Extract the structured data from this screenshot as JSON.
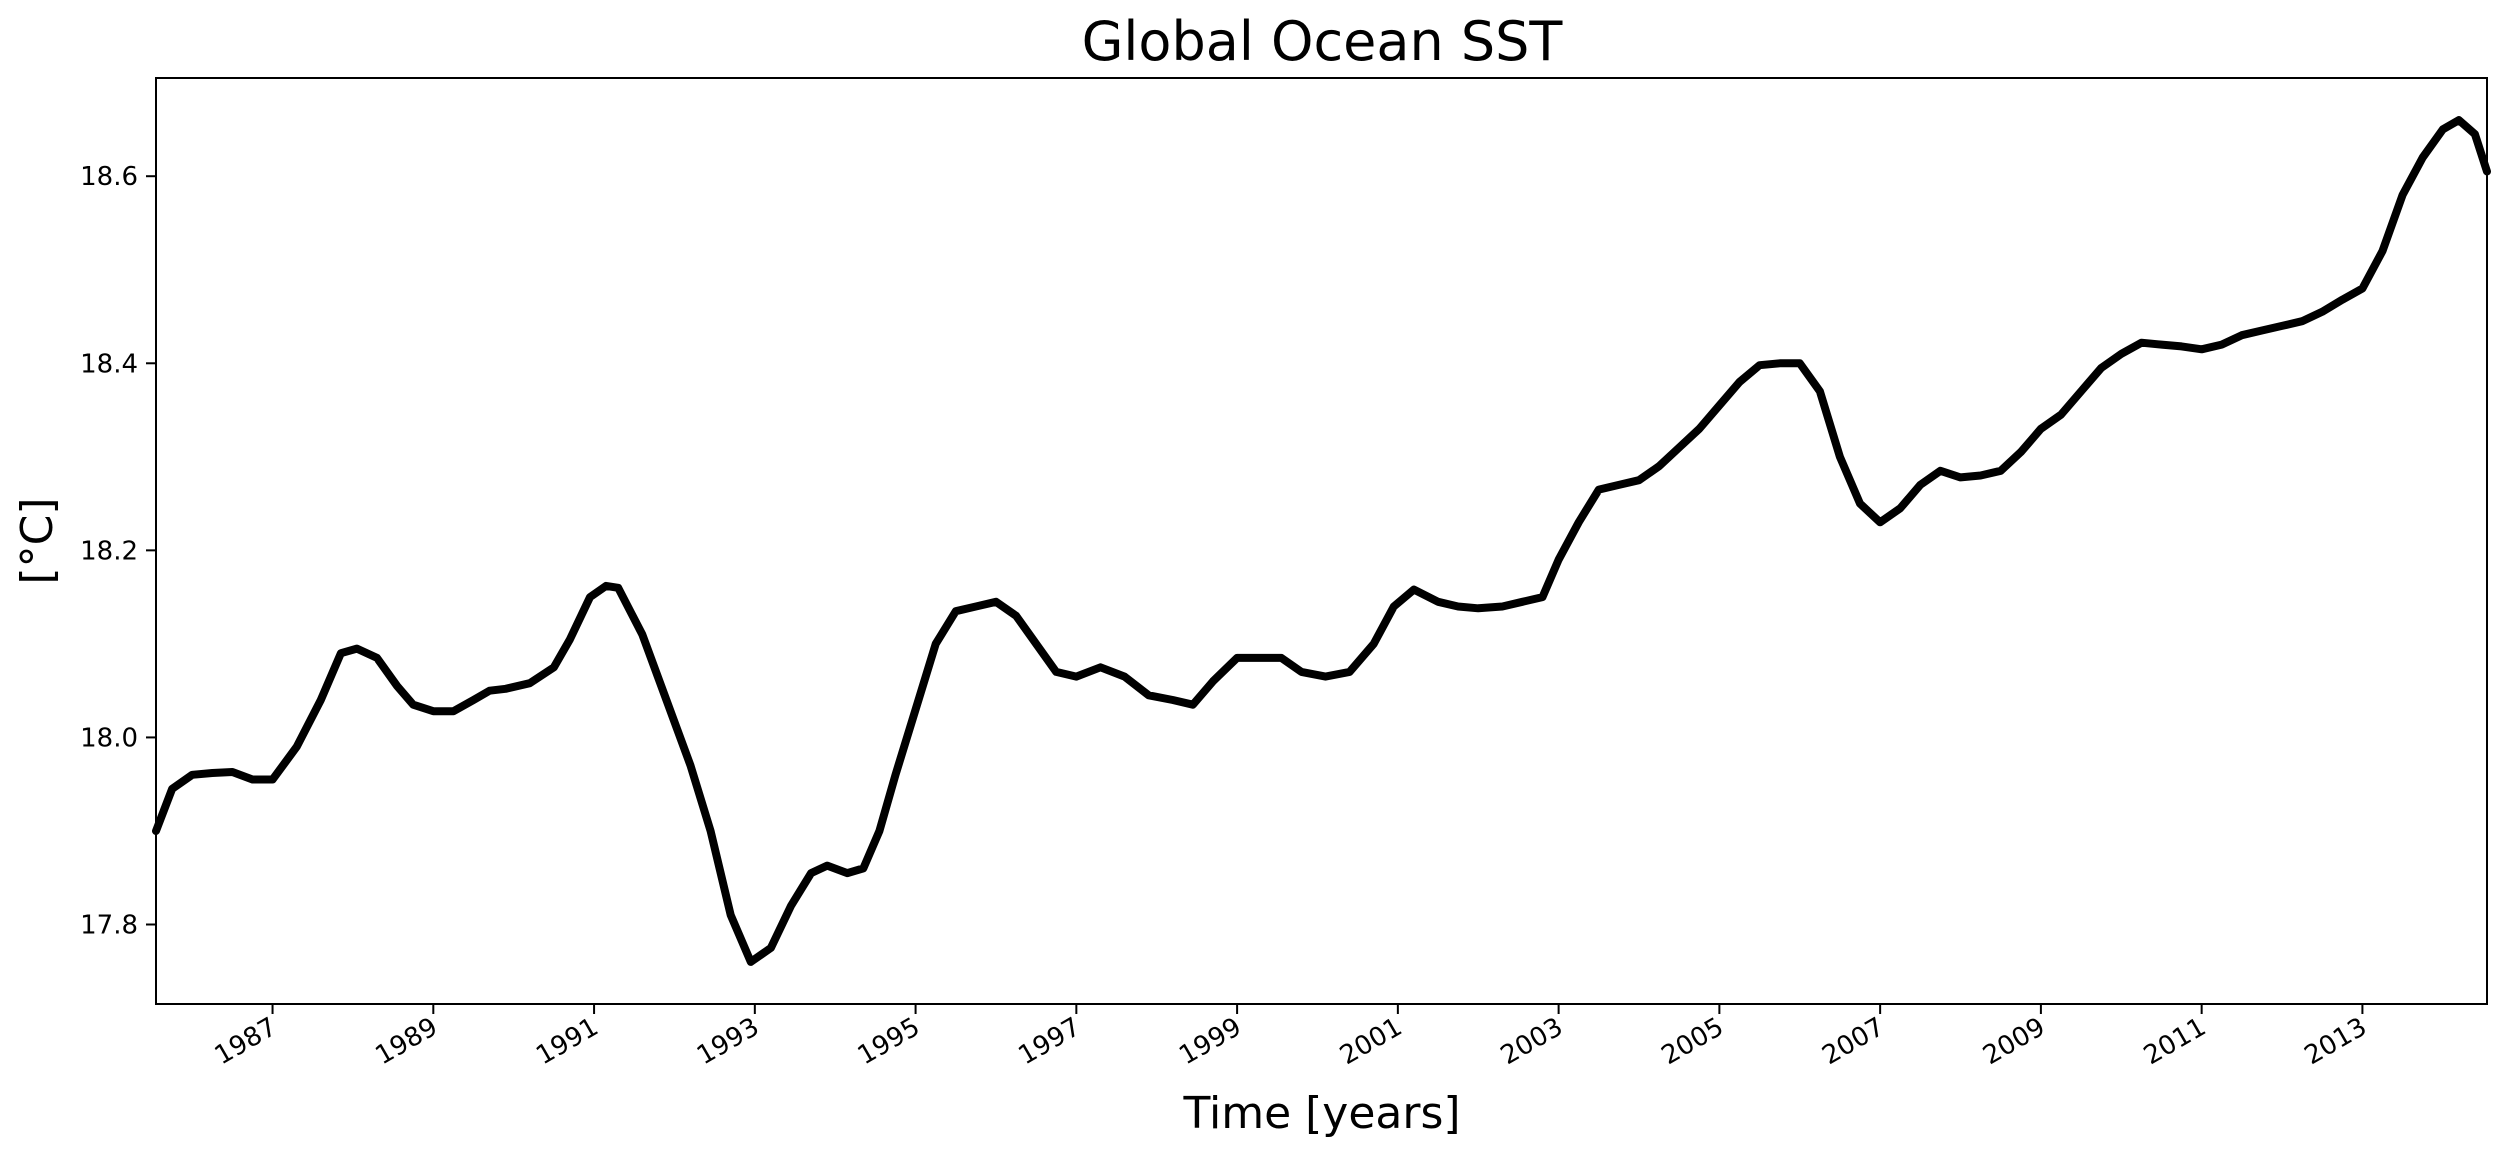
{
  "chart_data": {
    "type": "line",
    "title": "Global Ocean SST",
    "xlabel": "Time [years]",
    "ylabel": "[°C]",
    "xlim": [
      1985.55,
      2014.55
    ],
    "ylim": [
      17.715,
      18.705
    ],
    "grid": false,
    "legend": "none",
    "x_ticks": [
      1987,
      1989,
      1991,
      1993,
      1995,
      1997,
      1999,
      2001,
      2003,
      2005,
      2007,
      2009,
      2011,
      2013
    ],
    "x_tick_labels": [
      "1987",
      "1989",
      "1991",
      "1993",
      "1995",
      "1997",
      "1999",
      "2001",
      "2003",
      "2005",
      "2007",
      "2009",
      "2011",
      "2013"
    ],
    "y_ticks": [
      17.8,
      18.0,
      18.2,
      18.4,
      18.6
    ],
    "y_tick_labels": [
      "17.8",
      "18.0",
      "18.2",
      "18.4",
      "18.6"
    ],
    "series": [
      {
        "color": "#000000",
        "x": [
          1985.55,
          1985.75,
          1986.0,
          1986.25,
          1986.5,
          1986.75,
          1987.0,
          1987.3,
          1987.6,
          1987.85,
          1988.05,
          1988.3,
          1988.55,
          1988.75,
          1989.0,
          1989.25,
          1989.5,
          1989.7,
          1989.9,
          1990.2,
          1990.5,
          1990.7,
          1990.95,
          1991.15,
          1991.3,
          1991.6,
          1991.9,
          1992.2,
          1992.45,
          1992.7,
          1992.95,
          1993.2,
          1993.45,
          1993.7,
          1993.9,
          1994.15,
          1994.35,
          1994.55,
          1994.75,
          1995.0,
          1995.25,
          1995.5,
          1995.75,
          1996.0,
          1996.25,
          1996.5,
          1996.75,
          1997.0,
          1997.3,
          1997.6,
          1997.9,
          1998.2,
          1998.45,
          1998.7,
          1999.0,
          1999.3,
          1999.55,
          1999.8,
          2000.1,
          2000.4,
          2000.7,
          2000.95,
          2001.2,
          2001.5,
          2001.75,
          2002.0,
          2002.3,
          2002.55,
          2002.8,
          2003.0,
          2003.25,
          2003.5,
          2003.75,
          2004.0,
          2004.25,
          2004.5,
          2004.75,
          2005.0,
          2005.25,
          2005.5,
          2005.75,
          2006.0,
          2006.25,
          2006.5,
          2006.75,
          2007.0,
          2007.25,
          2007.5,
          2007.75,
          2008.0,
          2008.25,
          2008.5,
          2008.75,
          2009.0,
          2009.25,
          2009.5,
          2009.75,
          2010.0,
          2010.25,
          2010.5,
          2010.75,
          2011.0,
          2011.25,
          2011.5,
          2011.75,
          2012.0,
          2012.25,
          2012.5,
          2012.75,
          2013.0,
          2013.25,
          2013.5,
          2013.75,
          2014.0,
          2014.2,
          2014.4,
          2014.55
        ],
        "y": [
          17.9,
          17.945,
          17.96,
          17.962,
          17.963,
          17.955,
          17.955,
          17.99,
          18.04,
          18.09,
          18.095,
          18.085,
          18.055,
          18.035,
          18.028,
          18.028,
          18.04,
          18.05,
          18.052,
          18.058,
          18.075,
          18.105,
          18.15,
          18.162,
          18.16,
          18.11,
          18.04,
          17.97,
          17.9,
          17.81,
          17.76,
          17.775,
          17.82,
          17.855,
          17.863,
          17.855,
          17.86,
          17.9,
          17.96,
          18.03,
          18.1,
          18.135,
          18.14,
          18.145,
          18.13,
          18.1,
          18.07,
          18.065,
          18.075,
          18.065,
          18.045,
          18.04,
          18.035,
          18.06,
          18.085,
          18.085,
          18.085,
          18.07,
          18.065,
          18.07,
          18.1,
          18.14,
          18.158,
          18.145,
          18.14,
          18.138,
          18.14,
          18.145,
          18.15,
          18.19,
          18.23,
          18.265,
          18.27,
          18.275,
          18.29,
          18.31,
          18.33,
          18.355,
          18.38,
          18.398,
          18.4,
          18.4,
          18.37,
          18.3,
          18.25,
          18.23,
          18.245,
          18.27,
          18.285,
          18.278,
          18.28,
          18.285,
          18.305,
          18.33,
          18.345,
          18.37,
          18.395,
          18.41,
          18.422,
          18.42,
          18.418,
          18.415,
          18.42,
          18.43,
          18.435,
          18.44,
          18.445,
          18.455,
          18.468,
          18.48,
          18.52,
          18.58,
          18.62,
          18.65,
          18.66,
          18.645,
          18.605
        ]
      }
    ]
  }
}
